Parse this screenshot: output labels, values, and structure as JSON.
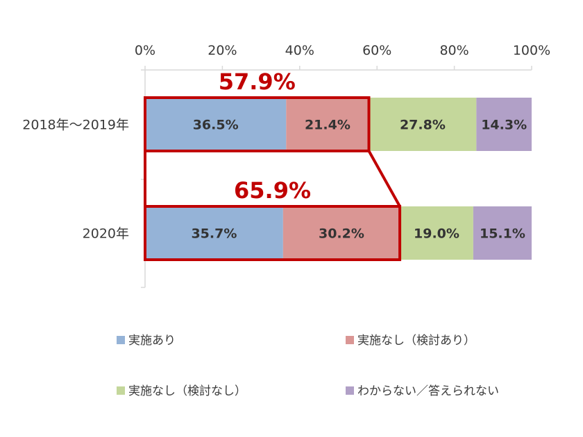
{
  "chart_data": {
    "type": "bar",
    "orientation": "horizontal",
    "stacked": "percent",
    "categories": [
      "2018年～2019年",
      "2020年"
    ],
    "series": [
      {
        "name": "実施あり",
        "values": [
          36.5,
          35.7
        ],
        "labels": [
          "36.5%",
          "35.7%"
        ],
        "color": "#95b3d7"
      },
      {
        "name": "実施なし（検討あり）",
        "values": [
          21.4,
          30.2
        ],
        "labels": [
          "21.4%",
          "30.2%"
        ],
        "color": "#da9694"
      },
      {
        "name": "実施なし（検討なし）",
        "values": [
          27.8,
          19.0
        ],
        "labels": [
          "27.8%",
          "19.0%"
        ],
        "color": "#c4d79b"
      },
      {
        "name": "わからない／答えられない",
        "values": [
          14.3,
          15.1
        ],
        "labels": [
          "14.3%",
          "15.1%"
        ],
        "color": "#b1a0c7"
      }
    ],
    "xlim": [
      0,
      100
    ],
    "x_ticks": [
      "0%",
      "20%",
      "40%",
      "60%",
      "80%",
      "100%"
    ],
    "axis_position": "top",
    "highlights": [
      {
        "category": "2018年～2019年",
        "value": 57.9,
        "label": "57.9%"
      },
      {
        "category": "2020年",
        "value": 65.9,
        "label": "65.9%"
      }
    ],
    "highlight_color": "#c00000",
    "legend_position": "bottom",
    "grid": false
  }
}
